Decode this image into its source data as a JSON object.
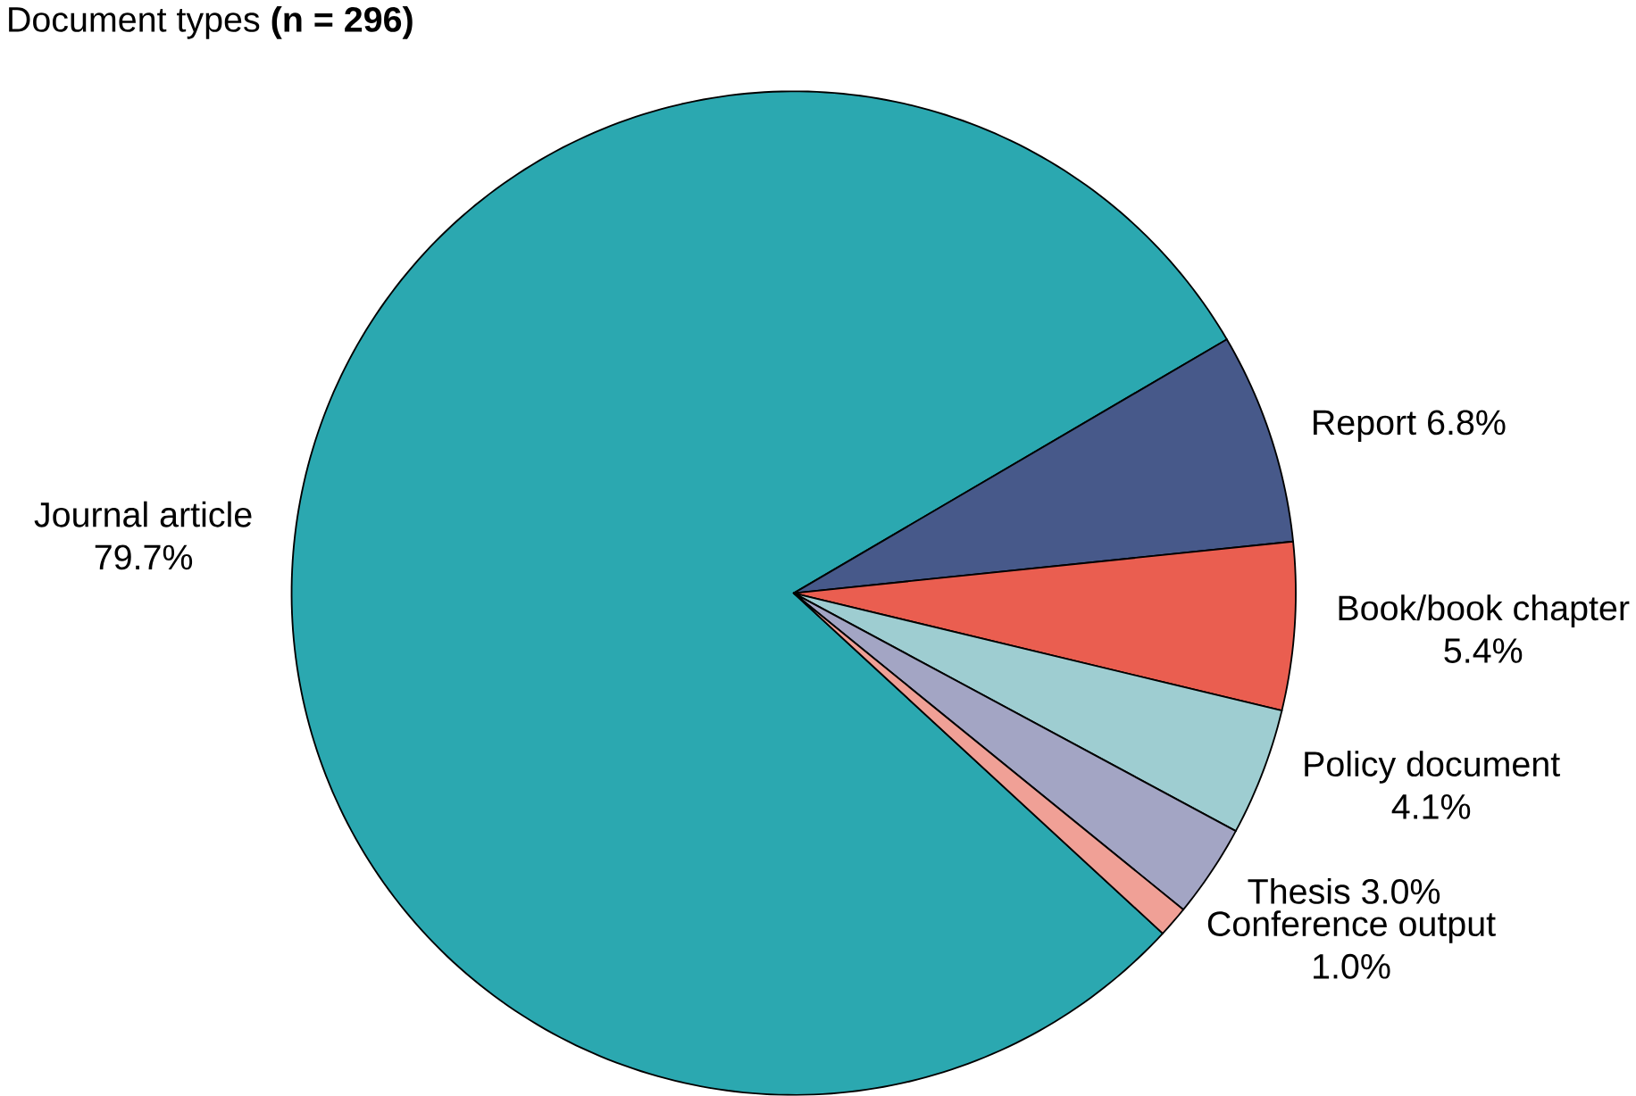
{
  "chart_data": {
    "type": "pie",
    "title": "Document types **(n = 296)**",
    "categories": [
      "Journal article",
      "Report",
      "Book/book chapter",
      "Policy document",
      "Thesis",
      "Conference output"
    ],
    "values": [
      79.7,
      6.8,
      5.4,
      4.1,
      3.0,
      1.0
    ],
    "value_labels": [
      "79.7%",
      "6.8%",
      "5.4%",
      "4.1%",
      "3.0%",
      "1.0%"
    ],
    "colors": [
      "#2ba8b0",
      "#47598a",
      "#ea5e50",
      "#9ecdd1",
      "#a3a5c4",
      "#f0a096"
    ]
  }
}
